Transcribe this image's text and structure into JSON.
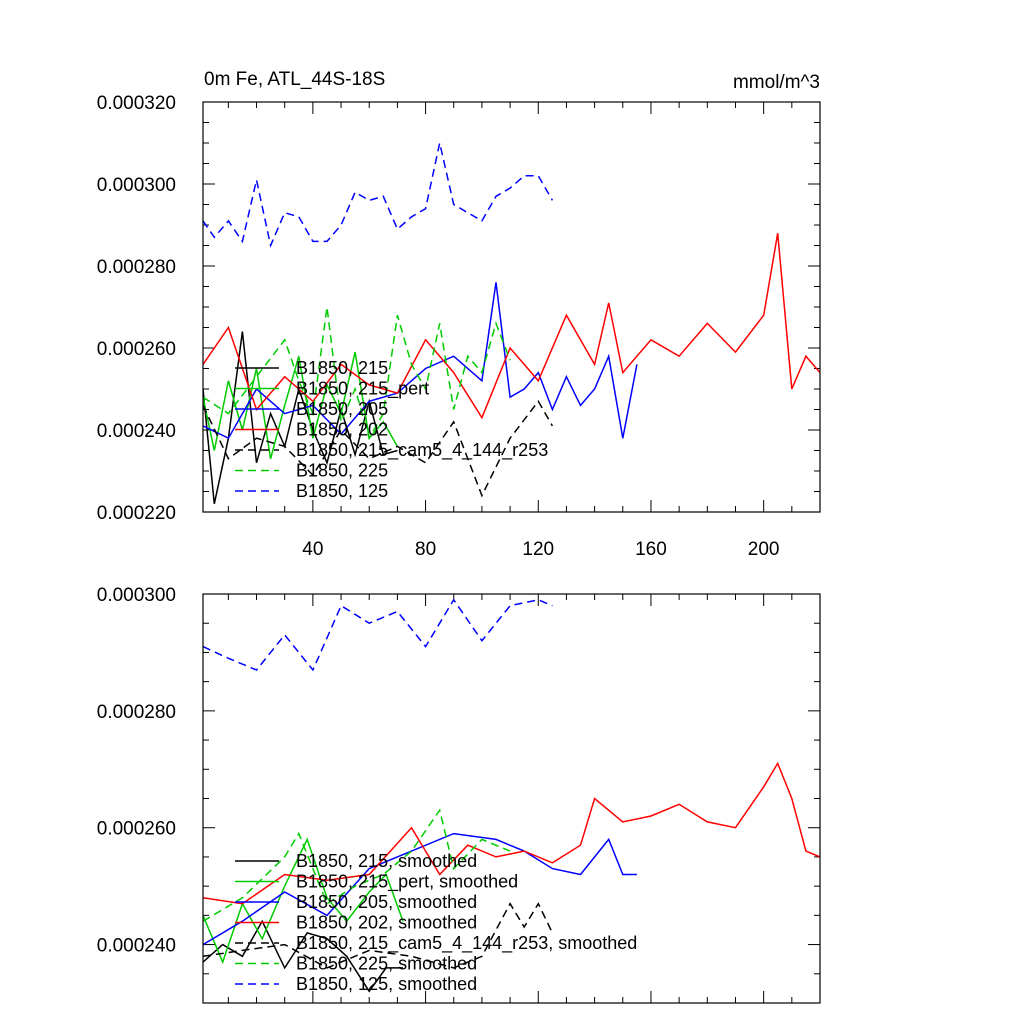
{
  "chart_data": [
    {
      "type": "line",
      "title": "0m Fe, ATL_44S-18S",
      "units": "mmol/m^3",
      "xlim": [
        1,
        220
      ],
      "ylim": [
        0.00022,
        0.00032
      ],
      "xticks": [
        40,
        80,
        120,
        160,
        200
      ],
      "xtick_labels": [
        "40",
        "80",
        "120",
        "160",
        "200"
      ],
      "yticks": [
        0.00022,
        0.00024,
        0.00026,
        0.00028,
        0.0003,
        0.00032
      ],
      "ytick_labels": [
        "0.000220",
        "0.000240",
        "0.000260",
        "0.000280",
        "0.000300",
        "0.000320"
      ],
      "legend_placement": "lower-left",
      "series": [
        {
          "name": "B1850, 215",
          "color": "#000000",
          "dash": "solid",
          "x": [
            1,
            5,
            10,
            15,
            20,
            25,
            30,
            35,
            40,
            45,
            50,
            55,
            60,
            65,
            70
          ],
          "y": [
            0.00025,
            0.000222,
            0.000238,
            0.000264,
            0.000232,
            0.000244,
            0.000236,
            0.00025,
            0.00024,
            0.000232,
            0.000245,
            0.000234,
            0.000247,
            0.000234,
            0.000235
          ]
        },
        {
          "name": "B1850, 215_pert",
          "color": "#00cc00",
          "dash": "solid",
          "x": [
            1,
            5,
            10,
            15,
            20,
            25,
            30,
            35,
            40,
            45,
            50,
            55,
            60,
            65,
            70
          ],
          "y": [
            0.000248,
            0.000235,
            0.000252,
            0.00024,
            0.000255,
            0.000233,
            0.000246,
            0.000258,
            0.000238,
            0.000251,
            0.000244,
            0.000259,
            0.000238,
            0.000242,
            0.000236
          ]
        },
        {
          "name": "B1850, 205",
          "color": "#0000ff",
          "dash": "solid",
          "x": [
            1,
            10,
            20,
            30,
            40,
            50,
            60,
            70,
            80,
            90,
            100,
            105,
            110,
            115,
            120,
            125,
            130,
            135,
            140,
            145,
            150,
            155
          ],
          "y": [
            0.000241,
            0.000238,
            0.00025,
            0.000244,
            0.000246,
            0.000239,
            0.000247,
            0.000249,
            0.000255,
            0.000258,
            0.000252,
            0.000276,
            0.000248,
            0.00025,
            0.000254,
            0.000245,
            0.000253,
            0.000246,
            0.00025,
            0.000258,
            0.000238,
            0.000256
          ]
        },
        {
          "name": "B1850, 202",
          "color": "#ff0000",
          "dash": "solid",
          "x": [
            1,
            10,
            20,
            30,
            40,
            50,
            60,
            70,
            80,
            90,
            100,
            110,
            120,
            130,
            140,
            145,
            150,
            160,
            170,
            180,
            190,
            200,
            205,
            210,
            215,
            220
          ],
          "y": [
            0.000256,
            0.000265,
            0.000245,
            0.000253,
            0.000247,
            0.000256,
            0.000251,
            0.000249,
            0.000262,
            0.000254,
            0.000243,
            0.00026,
            0.000252,
            0.000268,
            0.000256,
            0.000271,
            0.000254,
            0.000262,
            0.000258,
            0.000266,
            0.000259,
            0.000268,
            0.000288,
            0.00025,
            0.000258,
            0.000254
          ]
        },
        {
          "name": "B1850, 215_cam5_4_144_r253",
          "color": "#000000",
          "dash": "dashed",
          "x": [
            1,
            10,
            20,
            30,
            40,
            50,
            60,
            70,
            80,
            90,
            100,
            110,
            120,
            125
          ],
          "y": [
            0.000246,
            0.000233,
            0.000238,
            0.000236,
            0.000229,
            0.00024,
            0.000233,
            0.000236,
            0.000232,
            0.000242,
            0.000224,
            0.000238,
            0.000247,
            0.000241
          ]
        },
        {
          "name": "B1850, 225",
          "color": "#00cc00",
          "dash": "dashed",
          "x": [
            1,
            10,
            20,
            30,
            35,
            40,
            45,
            50,
            55,
            60,
            65,
            70,
            75,
            80,
            85,
            90,
            95,
            100,
            105,
            110
          ],
          "y": [
            0.000248,
            0.000244,
            0.000253,
            0.000262,
            0.000252,
            0.000244,
            0.00027,
            0.000242,
            0.00025,
            0.000238,
            0.000244,
            0.000268,
            0.000256,
            0.00025,
            0.000266,
            0.000245,
            0.000258,
            0.000254,
            0.000266,
            0.000257
          ]
        },
        {
          "name": "B1850, 125",
          "color": "#0000ff",
          "dash": "dashed",
          "x": [
            1,
            5,
            10,
            15,
            20,
            25,
            30,
            35,
            40,
            45,
            50,
            55,
            60,
            65,
            70,
            75,
            80,
            85,
            90,
            95,
            100,
            105,
            110,
            115,
            120,
            125
          ],
          "y": [
            0.000291,
            0.000287,
            0.000291,
            0.000286,
            0.000301,
            0.000285,
            0.000293,
            0.000292,
            0.000286,
            0.000286,
            0.00029,
            0.000298,
            0.000296,
            0.000297,
            0.000289,
            0.000292,
            0.000294,
            0.00031,
            0.000295,
            0.000293,
            0.000291,
            0.000297,
            0.000299,
            0.000302,
            0.000302,
            0.000296
          ]
        }
      ]
    },
    {
      "type": "line",
      "xlim": [
        1,
        220
      ],
      "ylim": [
        0.00023,
        0.0003
      ],
      "yticks": [
        0.00024,
        0.00026,
        0.00028,
        0.0003
      ],
      "ytick_labels": [
        "0.000240",
        "0.000260",
        "0.000280",
        "0.000300"
      ],
      "legend_placement": "lower-left",
      "series": [
        {
          "name": "B1850, 215, smoothed",
          "color": "#000000",
          "dash": "solid",
          "x": [
            1,
            8,
            15,
            22,
            30,
            38,
            45,
            52,
            60,
            66,
            72
          ],
          "y": [
            0.000237,
            0.00024,
            0.000238,
            0.000244,
            0.000236,
            0.000242,
            0.000241,
            0.000238,
            0.000232,
            0.000236,
            0.000236
          ]
        },
        {
          "name": "B1850, 215_pert, smoothed",
          "color": "#00cc00",
          "dash": "solid",
          "x": [
            1,
            8,
            15,
            22,
            30,
            38,
            45,
            52,
            60,
            66,
            72
          ],
          "y": [
            0.000245,
            0.000237,
            0.000247,
            0.000241,
            0.00025,
            0.000258,
            0.000248,
            0.000244,
            0.000249,
            0.000252,
            0.000244
          ]
        },
        {
          "name": "B1850, 205, smoothed",
          "color": "#0000ff",
          "dash": "solid",
          "x": [
            1,
            15,
            30,
            45,
            60,
            75,
            90,
            105,
            115,
            125,
            135,
            145,
            150,
            155
          ],
          "y": [
            0.00024,
            0.000244,
            0.000249,
            0.000245,
            0.000253,
            0.000256,
            0.000259,
            0.000258,
            0.000256,
            0.000253,
            0.000252,
            0.000258,
            0.000252,
            0.000252
          ]
        },
        {
          "name": "B1850, 202, smoothed",
          "color": "#ff0000",
          "dash": "solid",
          "x": [
            1,
            15,
            30,
            45,
            60,
            75,
            85,
            95,
            105,
            115,
            125,
            135,
            140,
            150,
            160,
            170,
            180,
            190,
            200,
            205,
            210,
            215,
            220
          ],
          "y": [
            0.000248,
            0.000247,
            0.000252,
            0.000251,
            0.000252,
            0.00026,
            0.000252,
            0.000257,
            0.000255,
            0.000256,
            0.000254,
            0.000257,
            0.000265,
            0.000261,
            0.000262,
            0.000264,
            0.000261,
            0.00026,
            0.000267,
            0.000271,
            0.000265,
            0.000256,
            0.000255
          ]
        },
        {
          "name": "B1850, 215_cam5_4_144_r253, smoothed",
          "color": "#000000",
          "dash": "dashed",
          "x": [
            1,
            15,
            30,
            45,
            60,
            75,
            90,
            100,
            110,
            115,
            120,
            125
          ],
          "y": [
            0.000238,
            0.000239,
            0.00024,
            0.000236,
            0.000239,
            0.000238,
            0.000236,
            0.000238,
            0.000247,
            0.000243,
            0.000247,
            0.000242
          ]
        },
        {
          "name": "B1850, 225, smoothed",
          "color": "#00cc00",
          "dash": "dashed",
          "x": [
            1,
            15,
            30,
            35,
            45,
            55,
            65,
            75,
            85,
            90,
            100,
            110
          ],
          "y": [
            0.000244,
            0.000248,
            0.000255,
            0.000259,
            0.000247,
            0.00025,
            0.000252,
            0.000256,
            0.000263,
            0.000253,
            0.000258,
            0.000256
          ]
        },
        {
          "name": "B1850, 125, smoothed",
          "color": "#0000ff",
          "dash": "dashed",
          "x": [
            1,
            10,
            20,
            30,
            40,
            50,
            60,
            70,
            80,
            90,
            100,
            110,
            120,
            125
          ],
          "y": [
            0.000291,
            0.000289,
            0.000287,
            0.000293,
            0.000287,
            0.000298,
            0.000295,
            0.000297,
            0.000291,
            0.000299,
            0.000292,
            0.000298,
            0.000299,
            0.000298
          ]
        }
      ]
    }
  ]
}
